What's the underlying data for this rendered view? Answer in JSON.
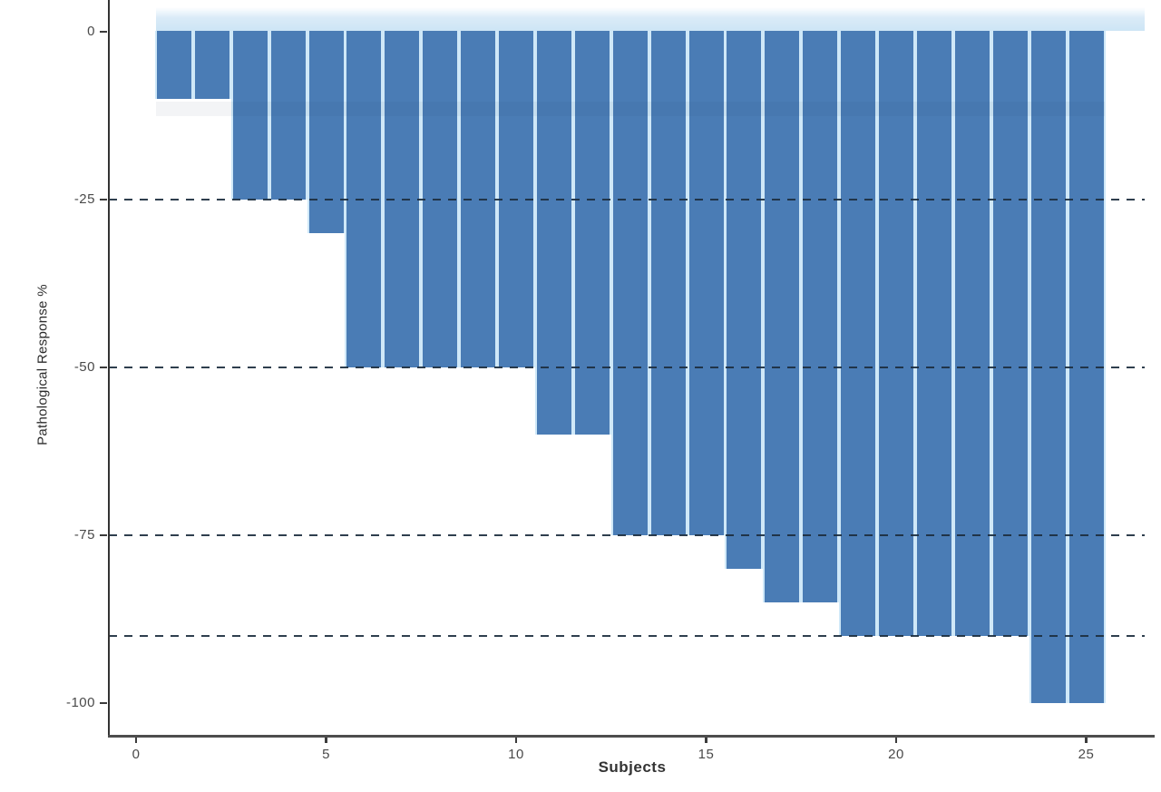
{
  "figure": {
    "background_color": "#ffffff",
    "title": ""
  },
  "chart_data": {
    "type": "bar",
    "variant": "waterfall",
    "title": "",
    "xlabel": "Subjects",
    "ylabel": "Pathological Response %",
    "categories": [
      1,
      2,
      3,
      4,
      5,
      6,
      7,
      8,
      9,
      10,
      11,
      12,
      13,
      14,
      15,
      16,
      17,
      18,
      19,
      20,
      21,
      22,
      23,
      24,
      25
    ],
    "values": [
      -10,
      -10,
      -25,
      -25,
      -30,
      -50,
      -50,
      -50,
      -50,
      -50,
      -60,
      -60,
      -75,
      -75,
      -75,
      -80,
      -85,
      -85,
      -90,
      -90,
      -90,
      -90,
      -90,
      -100,
      -100
    ],
    "x_ticks": [
      0,
      5,
      10,
      15,
      20,
      25
    ],
    "y_ticks": [
      0,
      -25,
      -50,
      -75,
      -100
    ],
    "dashed_gridlines": [
      -25,
      -50,
      -75,
      -90
    ],
    "xlim": [
      -0.7,
      26.6
    ],
    "ylim": [
      -105,
      4.7
    ],
    "grid": "horizontal dashed",
    "legend": "none",
    "bar_color": "#4a7cb5",
    "bar_border_color": "#cfe8f8",
    "gridline_color": "#1d2e3f",
    "axis_color": "#3c3c3c",
    "tick_label_color": "#4a4a4a"
  }
}
